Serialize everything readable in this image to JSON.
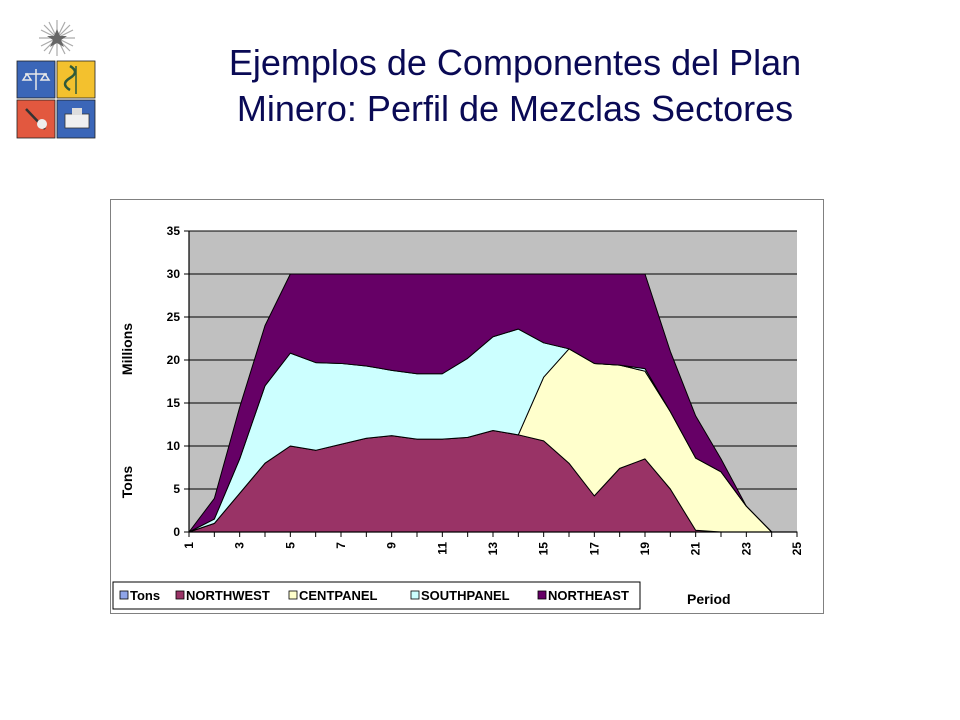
{
  "slide": {
    "title_line1": "Ejemplos de Componentes del Plan",
    "title_line2": "Minero: Perfil de Mezclas Sectores"
  },
  "logo": {
    "icon": "university-crest-icon"
  },
  "chart_data": {
    "type": "area",
    "stacked": true,
    "x": [
      1,
      2,
      3,
      4,
      5,
      6,
      7,
      8,
      9,
      10,
      11,
      12,
      13,
      14,
      15,
      16,
      17,
      18,
      19,
      20,
      21,
      22,
      23,
      24,
      25
    ],
    "xticks": [
      "1",
      "3",
      "5",
      "7",
      "9",
      "11",
      "13",
      "15",
      "17",
      "19",
      "21",
      "23",
      "25"
    ],
    "yticks": [
      "0",
      "5",
      "10",
      "15",
      "20",
      "25",
      "30",
      "35"
    ],
    "ylim": [
      0,
      35
    ],
    "xlim": [
      1,
      25
    ],
    "ylabel": "Tons",
    "ylabel_units": "Millions",
    "xlabel": "Period",
    "grid": true,
    "legend_position": "bottom-left",
    "series": [
      {
        "name": "Tons",
        "color": "#8fa4e8",
        "values": [
          0,
          0,
          0,
          0,
          0,
          0,
          0,
          0,
          0,
          0,
          0,
          0,
          0,
          0,
          0,
          0,
          0,
          0,
          0,
          0,
          0,
          0,
          0,
          0,
          0
        ]
      },
      {
        "name": "NORTHWEST",
        "color": "#993366",
        "values": [
          0,
          1,
          4.5,
          8,
          10,
          9.5,
          10.2,
          10.9,
          11.2,
          10.8,
          10.8,
          11,
          11.8,
          11.3,
          10.6,
          8,
          4.2,
          7.4,
          8.5,
          5,
          0.2,
          0,
          0,
          0,
          0
        ]
      },
      {
        "name": "CENTPANEL",
        "color": "#ffffcc",
        "values": [
          0,
          0,
          0,
          0,
          0,
          0,
          0,
          0,
          0,
          0,
          0,
          0,
          0,
          0,
          7.4,
          13.3,
          15.4,
          12,
          10.2,
          9,
          8.4,
          7,
          3,
          0,
          0
        ]
      },
      {
        "name": "SOUTHPANEL",
        "color": "#ccffff",
        "values": [
          0,
          0.5,
          4,
          9,
          10.8,
          10.2,
          9.4,
          8.4,
          7.6,
          7.6,
          7.6,
          9.2,
          10.9,
          12.3,
          4,
          0,
          0,
          0,
          0.3,
          0,
          0,
          0,
          0,
          0,
          0
        ]
      },
      {
        "name": "NORTHEAST",
        "color": "#660066",
        "values": [
          0,
          2.4,
          6,
          7,
          9.2,
          10.3,
          10.4,
          10.7,
          11.2,
          11.6,
          11.6,
          9.8,
          7.3,
          6.4,
          8,
          8.7,
          10.4,
          10.6,
          11,
          7,
          4.9,
          1.5,
          0,
          0,
          0
        ]
      }
    ],
    "colors": {
      "plot_bg": "#c0c0c0",
      "frame": "#808080",
      "outline": "#000000"
    }
  }
}
